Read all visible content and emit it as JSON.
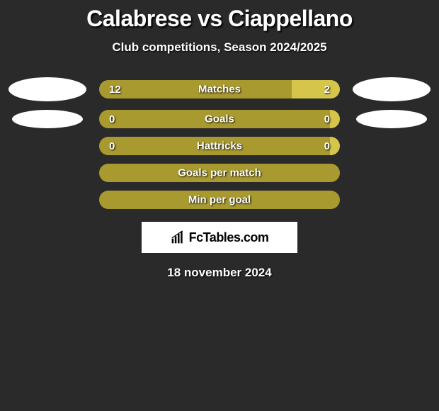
{
  "colors": {
    "accent_left": "#a99a2f",
    "accent_right": "#d6c54b",
    "background": "#2a2a2a",
    "white": "#ffffff",
    "black": "#000000"
  },
  "title": "Calabrese vs Ciappellano",
  "subtitle": "Club competitions, Season 2024/2025",
  "rows": [
    {
      "label": "Matches",
      "left_value": "12",
      "right_value": "2",
      "left_pct": 80,
      "right_pct": 20,
      "show_ellipses": true,
      "ellipse_small": false
    },
    {
      "label": "Goals",
      "left_value": "0",
      "right_value": "0",
      "left_pct": 96,
      "right_pct": 4,
      "show_ellipses": true,
      "ellipse_small": true
    },
    {
      "label": "Hattricks",
      "left_value": "0",
      "right_value": "0",
      "left_pct": 96,
      "right_pct": 4,
      "show_ellipses": false
    },
    {
      "label": "Goals per match",
      "single": true,
      "show_ellipses": false
    },
    {
      "label": "Min per goal",
      "single": true,
      "show_ellipses": false
    }
  ],
  "logo_text": "FcTables.com",
  "date": "18 november 2024",
  "typography": {
    "title_fontsize": 32,
    "subtitle_fontsize": 17,
    "bar_label_fontsize": 15,
    "logo_fontsize": 18,
    "date_fontsize": 17
  }
}
